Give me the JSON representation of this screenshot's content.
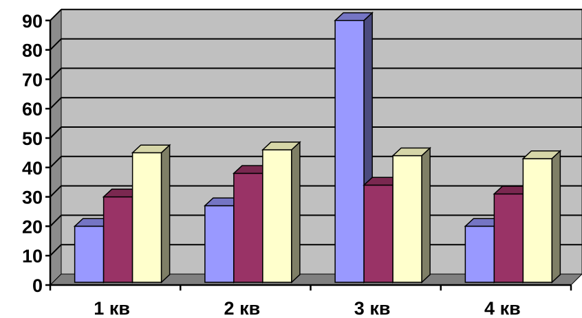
{
  "chart_data": {
    "type": "bar",
    "categories": [
      "1 кв",
      "2 кв",
      "3 кв",
      "4 кв"
    ],
    "series": [
      {
        "values": [
          20,
          27,
          90,
          20
        ]
      },
      {
        "values": [
          30,
          38,
          34,
          31
        ]
      },
      {
        "values": [
          45,
          46,
          44,
          43
        ]
      }
    ],
    "colors": {
      "series": [
        "#9999FF",
        "#993366",
        "#FFFFCC"
      ],
      "series_side": [
        "#4B4B7F",
        "#4B1932",
        "#7F7F66"
      ],
      "series_top": [
        "#7575C4",
        "#7A2850",
        "#D6D6A8"
      ],
      "wall": "#C0C0C0",
      "wall_side": "#8C8C8C",
      "floor": "#808080",
      "gridline": "#000000"
    },
    "ylim": [
      0,
      90
    ],
    "yticks": [
      "0",
      "10",
      "20",
      "30",
      "40",
      "50",
      "60",
      "70",
      "80",
      "90"
    ],
    "title": "",
    "xlabel": "",
    "ylabel": "",
    "grid": true,
    "legend": "none",
    "style": "3d-clustered-column"
  }
}
